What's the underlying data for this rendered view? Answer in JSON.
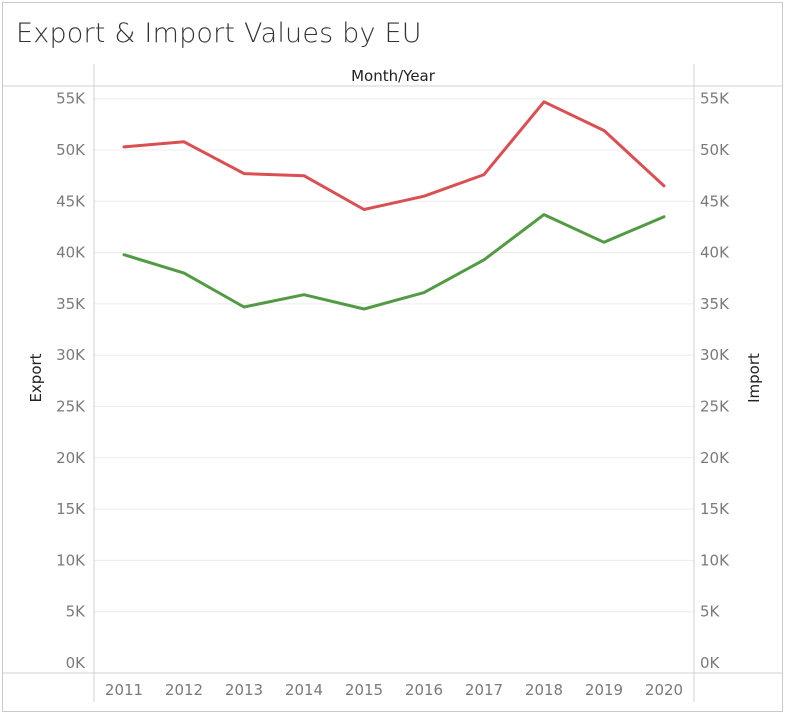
{
  "chart_data": {
    "type": "line",
    "title": "Export & Import Values by EU",
    "top_axis_label": "Month/Year",
    "left_axis_label": "Export",
    "right_axis_label": "Import",
    "x": [
      "2011",
      "2012",
      "2013",
      "2014",
      "2015",
      "2016",
      "2017",
      "2018",
      "2019",
      "2020"
    ],
    "y_ticks": [
      "0K",
      "5K",
      "10K",
      "15K",
      "20K",
      "25K",
      "30K",
      "35K",
      "40K",
      "45K",
      "50K",
      "55K"
    ],
    "ylim": [
      0,
      57000
    ],
    "grid": true,
    "series": [
      {
        "axis": "right",
        "color": "#d94f52",
        "values": [
          50300,
          50800,
          47700,
          47500,
          44200,
          45500,
          47600,
          54700,
          51900,
          46500
        ]
      },
      {
        "axis": "left",
        "color": "#529a44",
        "values": [
          39800,
          38000,
          34700,
          35900,
          34500,
          36100,
          39300,
          43700,
          41000,
          43500
        ]
      }
    ]
  }
}
